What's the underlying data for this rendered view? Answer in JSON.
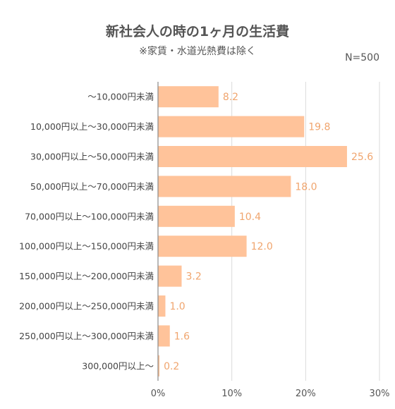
{
  "chart_data": {
    "type": "bar",
    "orientation": "horizontal",
    "title": "新社会人の時の1ヶ月の生活費",
    "subtitle": "※家賃・水道光熱費は除く",
    "sample_size_label": "N=500",
    "categories": [
      "～10,000円未満",
      "10,000円以上～30,000円未満",
      "30,000円以上～50,000円未満",
      "50,000円以上～70,000円未満",
      "70,000円以上～100,000円未満",
      "100,000円以上～150,000円未満",
      "150,000円以上～200,000円未満",
      "200,000円以上～250,000円未満",
      "250,000円以上～300,000円未満",
      "300,000円以上～"
    ],
    "values": [
      8.2,
      19.8,
      25.6,
      18.0,
      10.4,
      12.0,
      3.2,
      1.0,
      1.6,
      0.2
    ],
    "value_labels": [
      "8.2",
      "19.8",
      "25.6",
      "18.0",
      "10.4",
      "12.0",
      "3.2",
      "1.0",
      "1.6",
      "0.2"
    ],
    "x_ticks": [
      "0%",
      "10%",
      "20%",
      "30%"
    ],
    "xlim": [
      0,
      30
    ],
    "grid": true,
    "colors": {
      "bar": "#FFC39A",
      "value_label": "#F0A56E",
      "grid": "#DADADA",
      "axis": "#888888"
    }
  }
}
